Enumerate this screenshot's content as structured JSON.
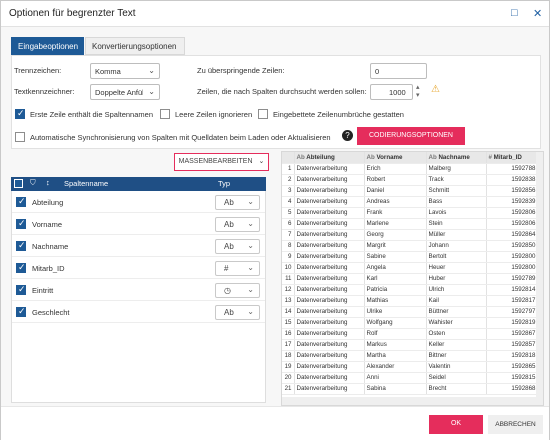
{
  "window": {
    "title": "Optionen für begrenzter Text",
    "minimize": "□",
    "close": "✕"
  },
  "tabs": [
    "Eingabeoptionen",
    "Konvertierungsoptionen"
  ],
  "options": {
    "delimiter_label": "Trennzeichen:",
    "delimiter_value": "Komma",
    "qualifier_label": "Textkennzeichner:",
    "qualifier_value": "Doppelte Anführ",
    "skip_label": "Zu überspringende Zeilen:",
    "skip_value": "0",
    "scan_label": "Zeilen, die nach Spalten durchsucht werden sollen:",
    "scan_value": "1000",
    "first_row_label": "Erste Zeile enthält die Spaltennamen",
    "ignore_empty_label": "Leere Zeilen ignorieren",
    "embedded_breaks_label": "Eingebettete Zeilenumbrüche gestatten",
    "auto_sync_label": "Automatische Synchronisierung von Spalten mit Quelldaten beim Laden oder Aktualisieren",
    "encoding_button": "CODIERUNGSOPTIONEN",
    "help": "?"
  },
  "bulk_edit": "MASSENBEARBEITEN",
  "columns_grid": {
    "header_name": "Spaltenname",
    "header_type": "Typ",
    "rows": [
      {
        "name": "Abteilung",
        "type": "Ab"
      },
      {
        "name": "Vorname",
        "type": "Ab"
      },
      {
        "name": "Nachname",
        "type": "Ab"
      },
      {
        "name": "Mitarb_ID",
        "type": "#"
      },
      {
        "name": "Eintritt",
        "type": "◷"
      },
      {
        "name": "Geschlecht",
        "type": "Ab"
      }
    ]
  },
  "preview": {
    "headers": [
      "Abteilung",
      "Vorname",
      "Nachname",
      "Mitarb_ID"
    ],
    "rows": [
      [
        "1",
        "Datenverarbeitung",
        "Erich",
        "Malberg",
        "1592788"
      ],
      [
        "2",
        "Datenverarbeitung",
        "Robert",
        "Track",
        "1592838"
      ],
      [
        "3",
        "Datenverarbeitung",
        "Daniel",
        "Schmitt",
        "1592856"
      ],
      [
        "4",
        "Datenverarbeitung",
        "Andreas",
        "Bass",
        "1592839"
      ],
      [
        "5",
        "Datenverarbeitung",
        "Frank",
        "Lavois",
        "1592806"
      ],
      [
        "6",
        "Datenverarbeitung",
        "Marlene",
        "Stein",
        "1592806"
      ],
      [
        "7",
        "Datenverarbeitung",
        "Georg",
        "Müller",
        "1592864"
      ],
      [
        "8",
        "Datenverarbeitung",
        "Margrit",
        "Johann",
        "1592850"
      ],
      [
        "9",
        "Datenverarbeitung",
        "Sabine",
        "Bertolt",
        "1592800"
      ],
      [
        "10",
        "Datenverarbeitung",
        "Angela",
        "Heuer",
        "1592800"
      ],
      [
        "11",
        "Datenverarbeitung",
        "Karl",
        "Huber",
        "1592789"
      ],
      [
        "12",
        "Datenverarbeitung",
        "Patricia",
        "Ulrich",
        "1592814"
      ],
      [
        "13",
        "Datenverarbeitung",
        "Mathias",
        "Kail",
        "1592817"
      ],
      [
        "14",
        "Datenverarbeitung",
        "Ulrike",
        "Büttner",
        "1592797"
      ],
      [
        "15",
        "Datenverarbeitung",
        "Wolfgang",
        "Wahister",
        "1592819"
      ],
      [
        "16",
        "Datenverarbeitung",
        "Rolf",
        "Osten",
        "1592867"
      ],
      [
        "17",
        "Datenverarbeitung",
        "Markus",
        "Keller",
        "1592857"
      ],
      [
        "18",
        "Datenverarbeitung",
        "Martha",
        "Bittner",
        "1592818"
      ],
      [
        "19",
        "Datenverarbeitung",
        "Alexander",
        "Valentin",
        "1592865"
      ],
      [
        "20",
        "Datenverarbeitung",
        "Anni",
        "Seidel",
        "1592815"
      ],
      [
        "21",
        "Datenverarbeitung",
        "Sabina",
        "Brecht",
        "1592868"
      ]
    ]
  },
  "footer": {
    "ok": "OK",
    "cancel": "ABBRECHEN"
  }
}
